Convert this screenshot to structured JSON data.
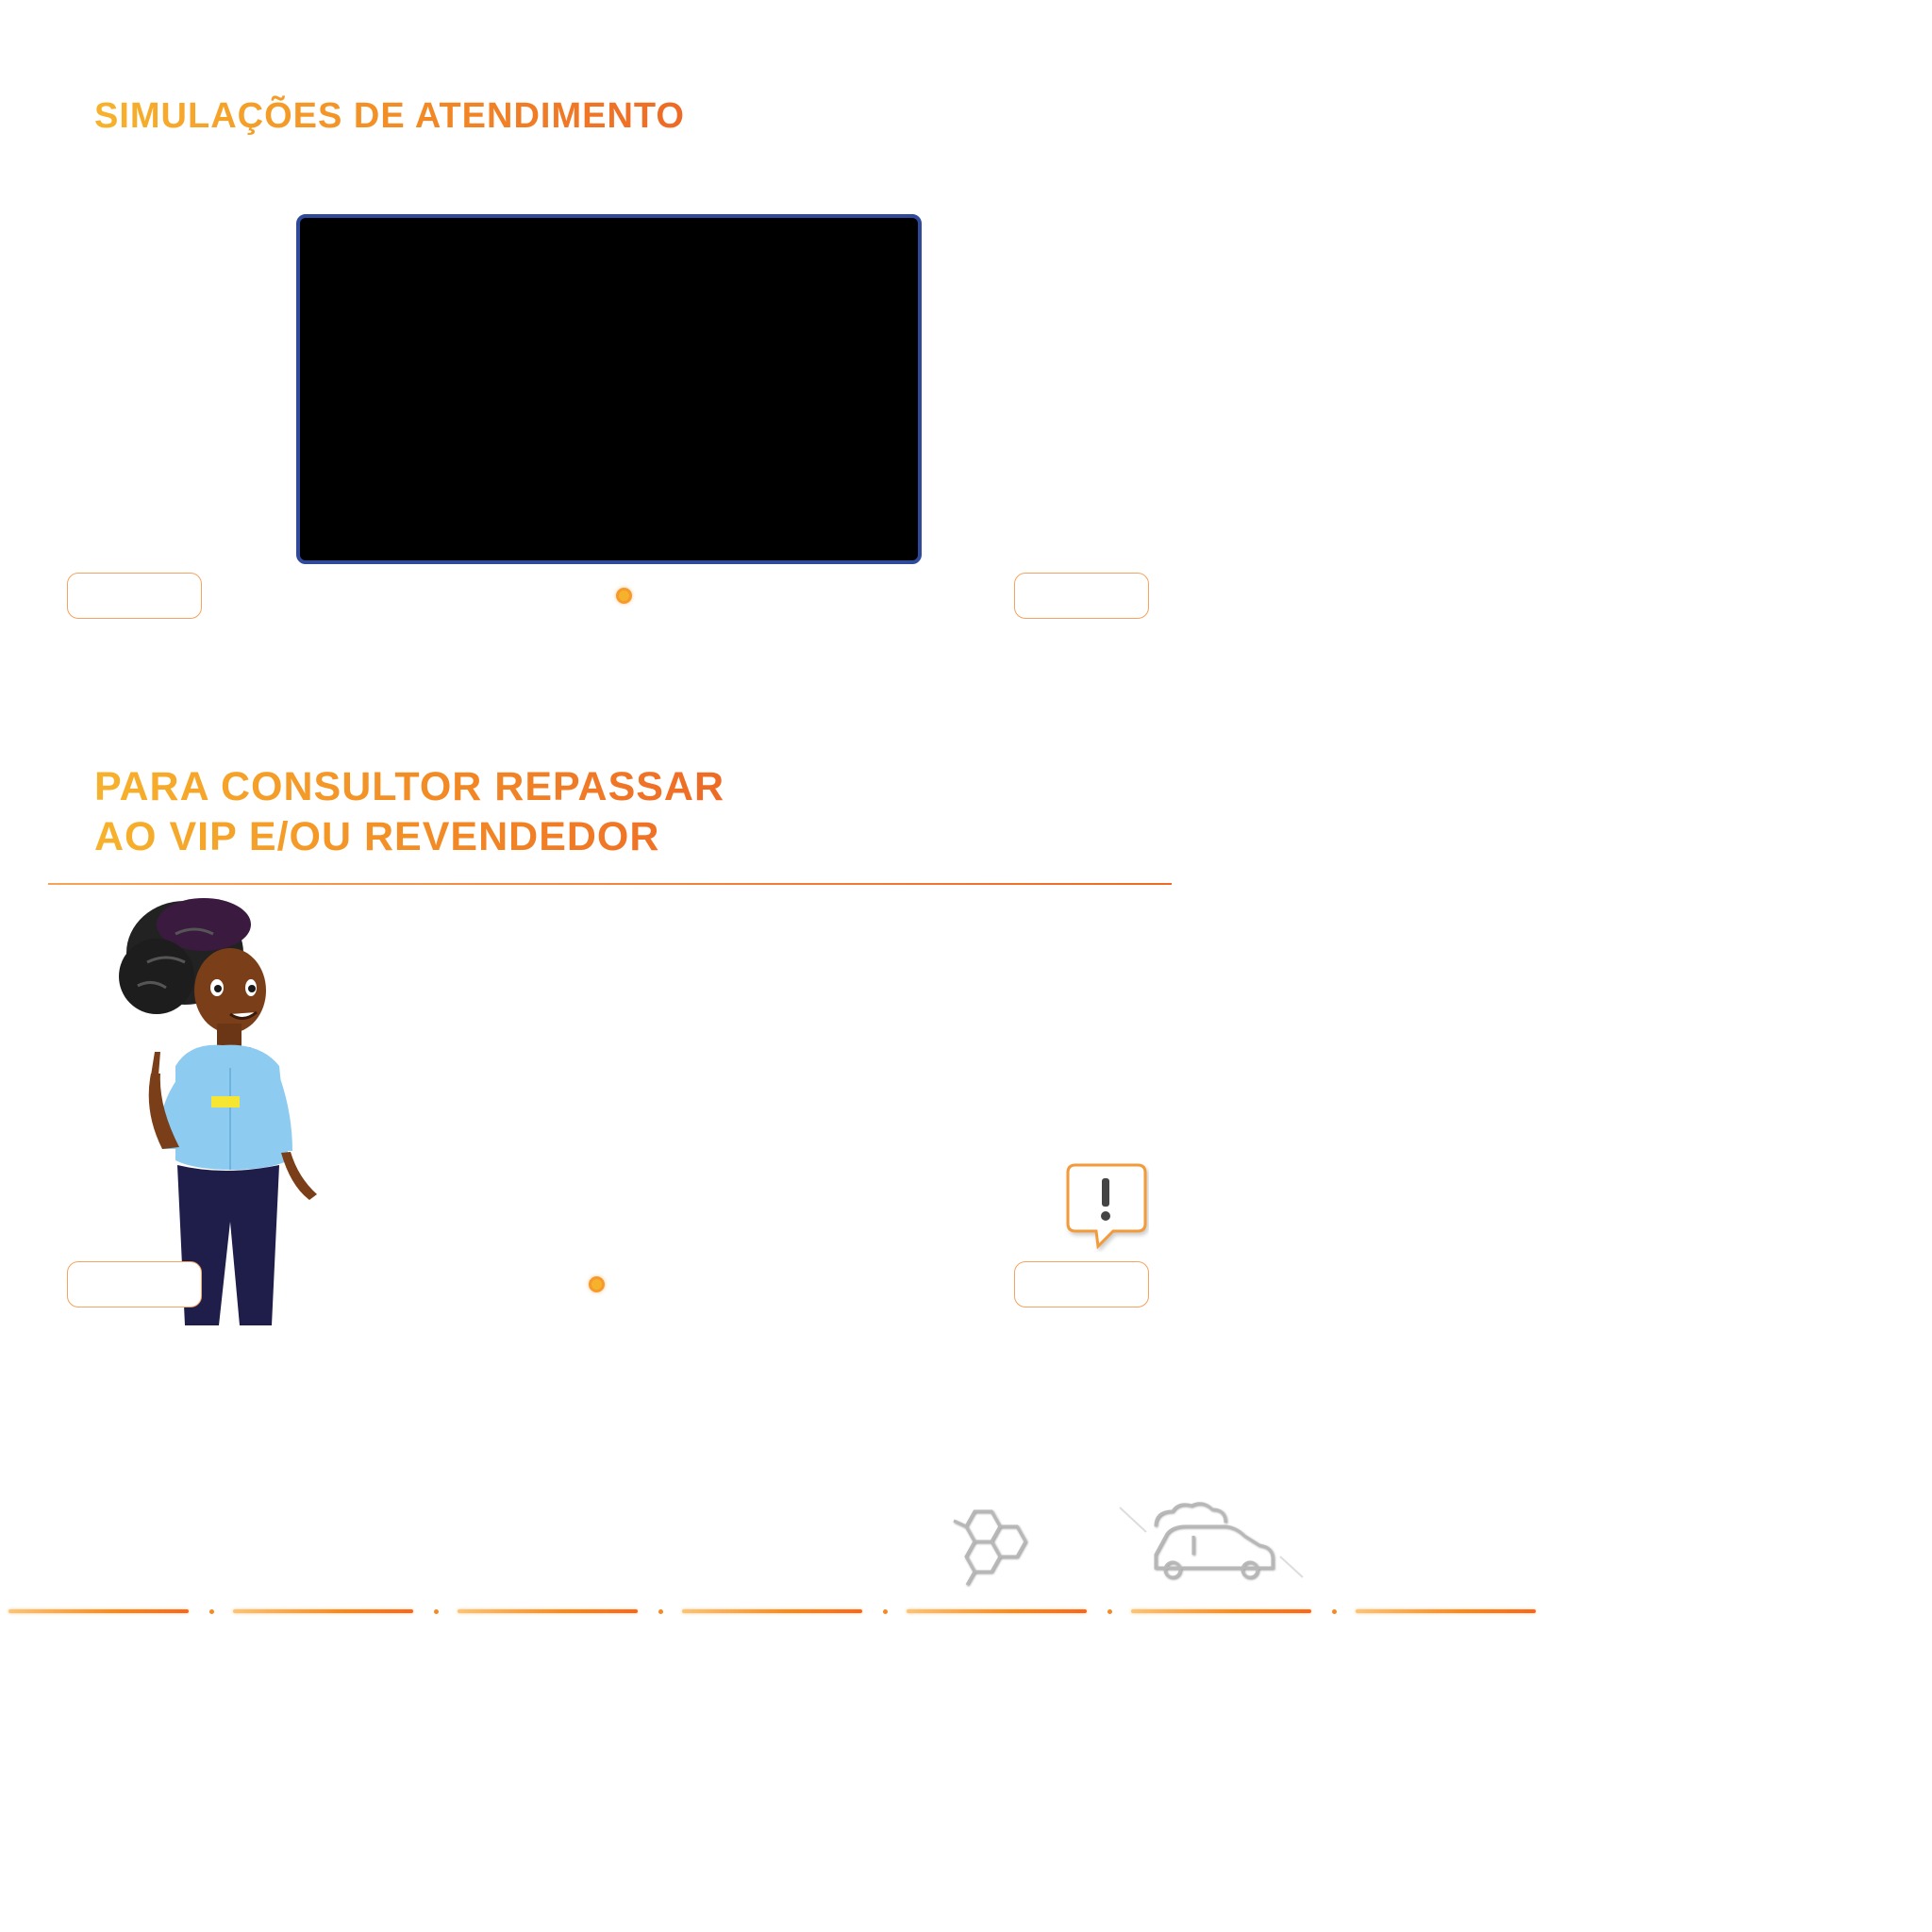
{
  "section1": {
    "title": "SIMULAÇÕES DE ATENDIMENTO",
    "prev_label": "",
    "next_label": ""
  },
  "section2": {
    "title_line1": "PARA CONSULTOR REPASSAR",
    "title_line2": "AO VIP E/OU REVENDEDOR",
    "prev_label": "",
    "next_label": ""
  },
  "icons": {
    "alert": "exclamation-speech-bubble-icon",
    "hexagon": "molecule-hexagon-icon",
    "car": "car-with-smoke-icon"
  },
  "progress": {
    "segments": 7
  },
  "colors": {
    "accent": "#ee6a26",
    "accent_light": "#f7b22c",
    "video_border": "#2f4a9b",
    "shirt": "#8ecbf0",
    "pants": "#1f1d4a"
  }
}
